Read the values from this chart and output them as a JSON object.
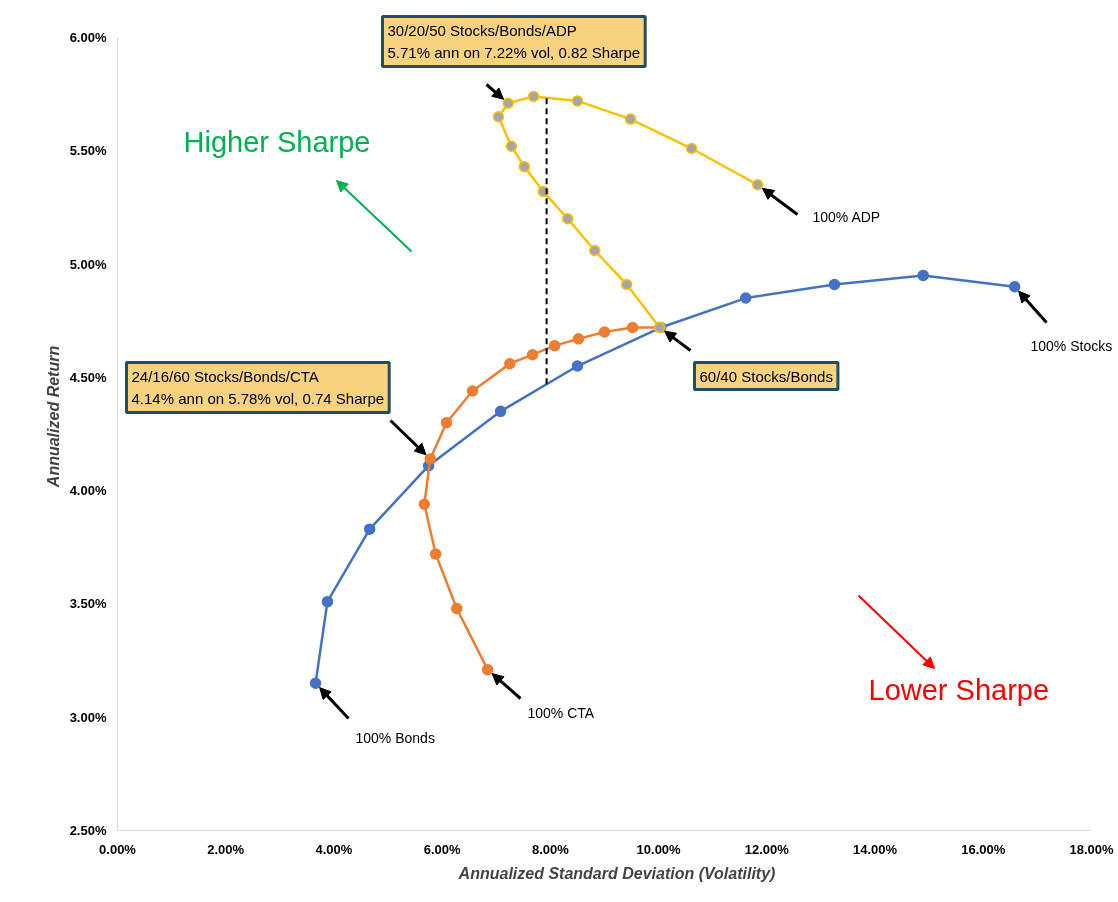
{
  "chart_data": {
    "type": "line",
    "xlabel": "Annualized Standard Deviation (Volatility)",
    "ylabel": "Annualized Return",
    "xlim": [
      0,
      18
    ],
    "ylim": [
      2.5,
      6
    ],
    "xticks": [
      {
        "value": 0,
        "label": "0.00%"
      },
      {
        "value": 2,
        "label": "2.00%"
      },
      {
        "value": 4,
        "label": "4.00%"
      },
      {
        "value": 6,
        "label": "6.00%"
      },
      {
        "value": 8,
        "label": "8.00%"
      },
      {
        "value": 10,
        "label": "10.00%"
      },
      {
        "value": 12,
        "label": "12.00%"
      },
      {
        "value": 14,
        "label": "14.00%"
      },
      {
        "value": 16,
        "label": "16.00%"
      },
      {
        "value": 18,
        "label": "18.00%"
      }
    ],
    "yticks": [
      {
        "value": 2.5,
        "label": "2.50%"
      },
      {
        "value": 3,
        "label": "3.00%"
      },
      {
        "value": 3.5,
        "label": "3.50%"
      },
      {
        "value": 4,
        "label": "4.00%"
      },
      {
        "value": 4.5,
        "label": "4.50%"
      },
      {
        "value": 5,
        "label": "5.00%"
      },
      {
        "value": 5.5,
        "label": "5.50%"
      },
      {
        "value": 6,
        "label": "6.00%"
      }
    ],
    "grid": false,
    "marker": "circle",
    "line_style": "solid",
    "series": [
      {
        "color": "#4472c4",
        "x": [
          3.66,
          3.88,
          4.66,
          5.75,
          7.08,
          8.5,
          10.04,
          11.61,
          13.25,
          14.89,
          16.58
        ],
        "values": [
          3.15,
          3.51,
          3.83,
          4.11,
          4.35,
          4.55,
          4.72,
          4.85,
          4.91,
          4.95,
          4.9
        ]
      },
      {
        "color": "#ed7d31",
        "x": [
          10.02,
          9.52,
          9.0,
          8.52,
          8.08,
          7.67,
          7.25,
          6.56,
          6.08,
          5.78,
          5.67,
          5.88,
          6.27,
          6.84
        ],
        "values": [
          4.72,
          4.72,
          4.7,
          4.67,
          4.64,
          4.6,
          4.56,
          4.44,
          4.3,
          4.14,
          3.94,
          3.72,
          3.48,
          3.21
        ]
      },
      {
        "color": "#ffc000",
        "x": [
          10.02,
          9.41,
          8.82,
          8.32,
          7.87,
          7.52,
          7.28,
          7.04,
          7.22,
          7.69,
          8.5,
          9.48,
          10.61,
          11.83
        ],
        "values": [
          4.72,
          4.91,
          5.06,
          5.2,
          5.32,
          5.43,
          5.52,
          5.65,
          5.71,
          5.74,
          5.72,
          5.64,
          5.51,
          5.35
        ]
      },
      {
        "type": "line",
        "color": "#000000",
        "line_style": "dashed",
        "marker": "none",
        "x": [
          7.93,
          7.93
        ],
        "values": [
          4.47,
          5.74
        ]
      }
    ],
    "annotations": [
      {
        "text": "30/20/50 Stocks/Bonds/ADP\n5.71% ann on 7.22% vol, 0.82 Sharpe",
        "x": 7.22,
        "y": 5.71
      },
      {
        "text": "24/16/60 Stocks/Bonds/CTA\n4.14% ann on 5.78% vol, 0.74 Sharpe",
        "x": 5.78,
        "y": 4.14
      },
      {
        "text": "60/40 Stocks/Bonds",
        "x": 10.02,
        "y": 4.72
      },
      {
        "text": "100% ADP",
        "x": 11.83,
        "y": 5.35
      },
      {
        "text": "100% Stocks",
        "x": 16.58,
        "y": 4.9
      },
      {
        "text": "100% CTA",
        "x": 6.84,
        "y": 3.21
      },
      {
        "text": "100% Bonds",
        "x": 3.66,
        "y": 3.15
      },
      "Higher Sharpe",
      "Lower Sharpe"
    ]
  }
}
